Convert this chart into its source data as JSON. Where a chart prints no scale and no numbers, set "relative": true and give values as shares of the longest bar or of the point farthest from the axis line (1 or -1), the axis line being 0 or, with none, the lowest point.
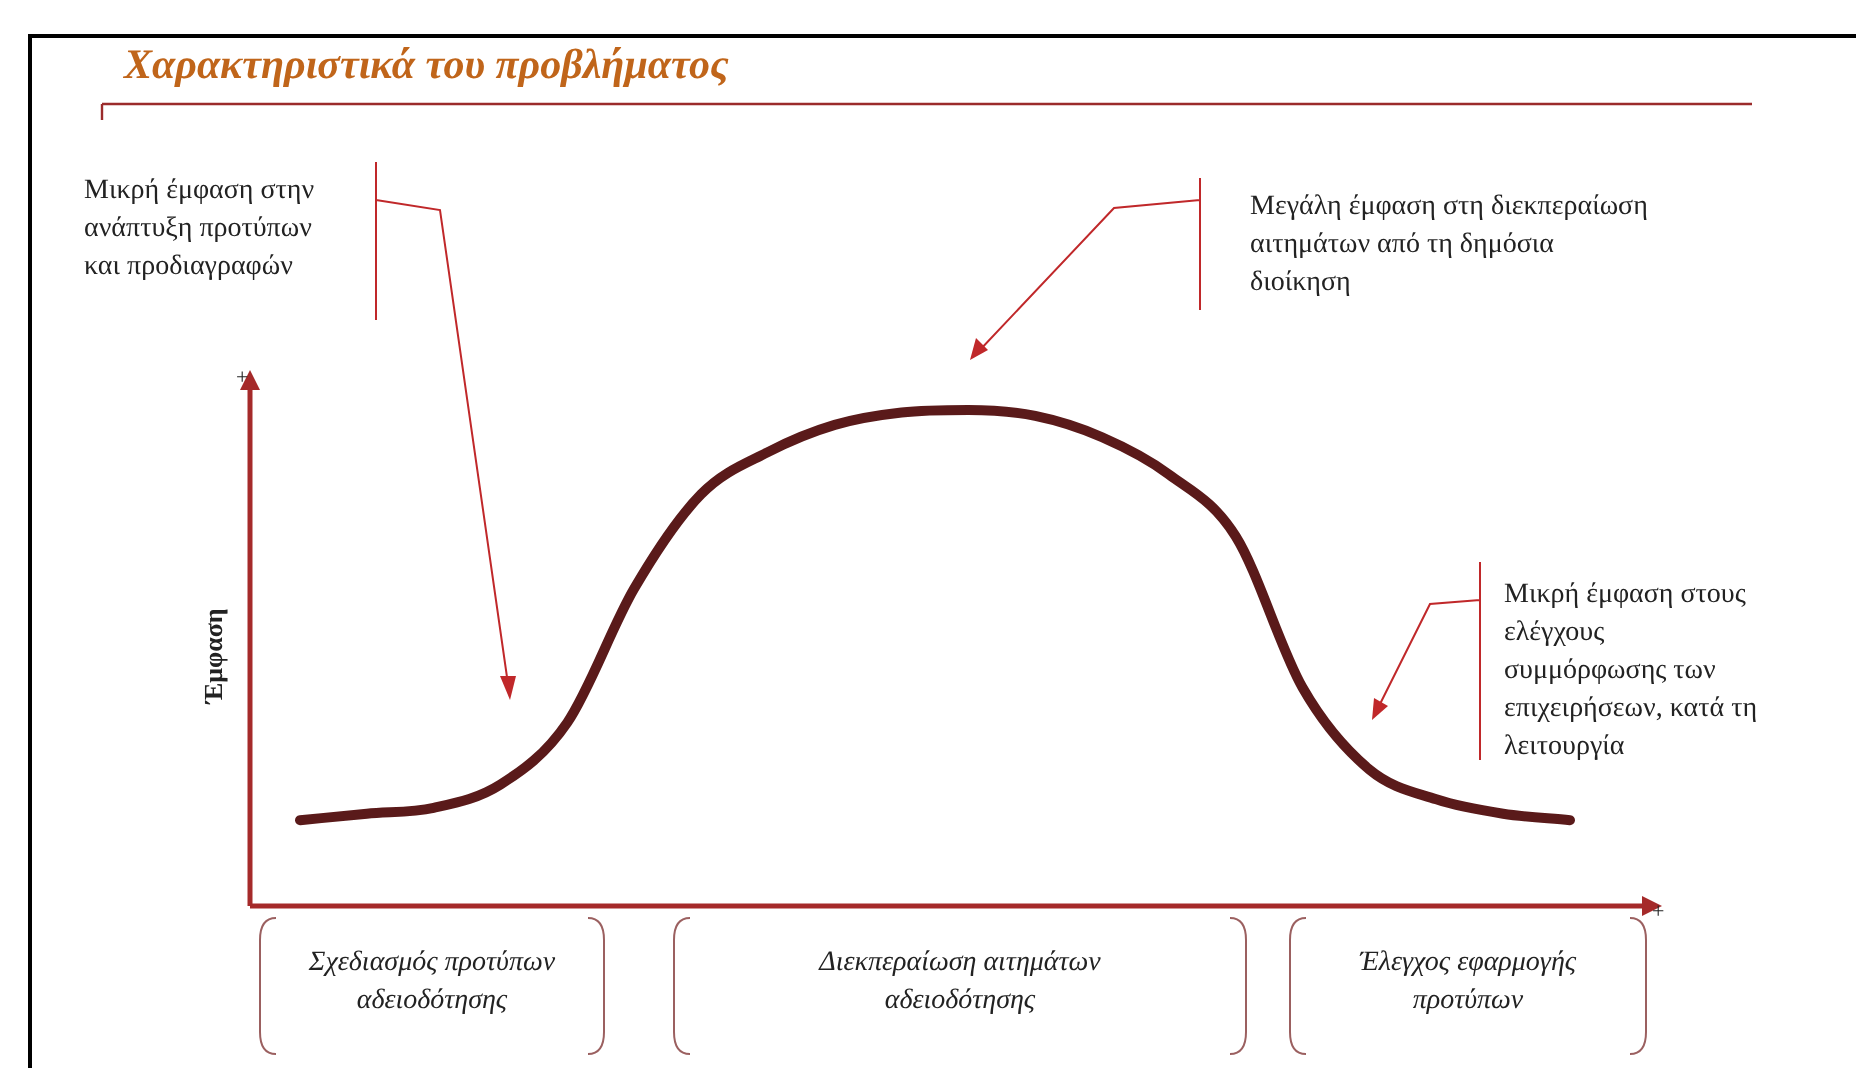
{
  "chart_data": {
    "type": "line",
    "title": "Χαρακτηριστικά του προβλήματος",
    "ylabel": "Έμφαση",
    "relative": true,
    "categories": [
      null,
      null,
      null,
      null,
      null,
      null,
      null,
      null,
      null,
      null,
      null,
      null,
      null,
      null,
      null,
      null,
      null,
      null,
      null,
      null
    ],
    "series": [
      {
        "color": "#5a1a1a",
        "values": [
          0.173,
          0.186,
          0.198,
          0.245,
          0.37,
          0.64,
          0.83,
          0.915,
          0.97,
          0.995,
          1,
          0.988,
          0.945,
          0.87,
          0.745,
          0.44,
          0.275,
          0.215,
          0.186,
          0.173
        ]
      }
    ],
    "annotations": [
      "Μικρή έμφαση στην ανάπτυξη προτύπων και προδιαγραφών",
      "Μεγάλη έμφαση στη διεκπεραίωση αιτημάτων από τη δημόσια διοίκηση",
      "Μικρή έμφαση στους ελέγχους συμμόρφωσης των επιχειρήσεων, κατά τη λειτουργία",
      "+",
      "+",
      "Σχεδιασμός προτύπων αδειοδότησης",
      "Διεκπεραίωση αιτημάτων αδειοδότησης",
      "Έλεγχος εφαρμογής προτύπων"
    ]
  }
}
